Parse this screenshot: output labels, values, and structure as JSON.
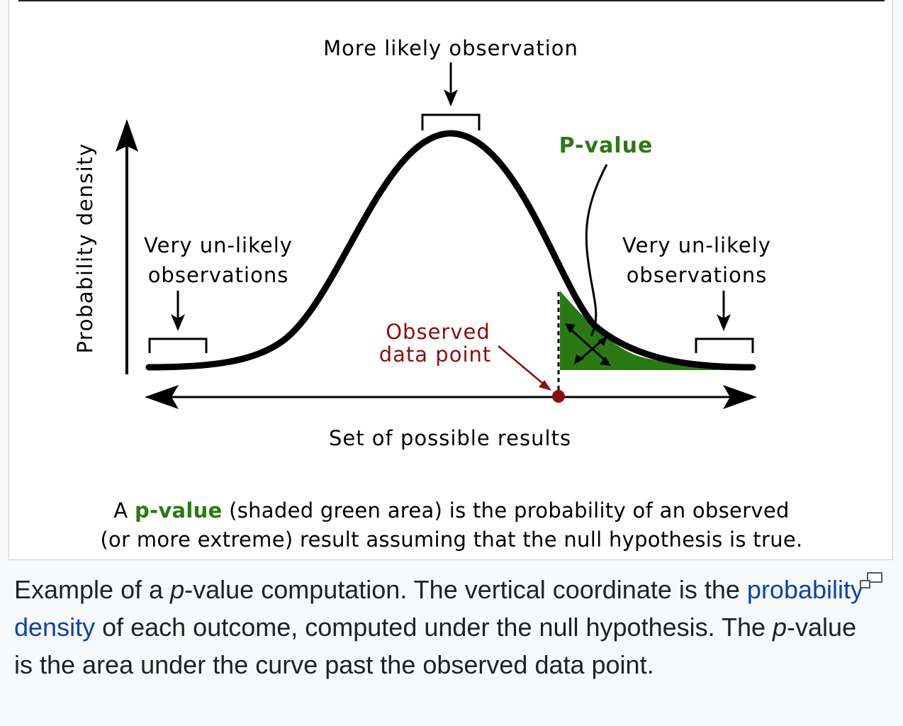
{
  "diagram": {
    "top_label": "More likely observation",
    "pvalue_label": "P-value",
    "y_axis_label": "Probability density",
    "left_tail_label": [
      "Very un-likely",
      "observations"
    ],
    "right_tail_label": [
      "Very un-likely",
      "observations"
    ],
    "observed_label": [
      "Observed",
      "data point"
    ],
    "x_axis_label": "Set of possible results",
    "colors": {
      "curve": "#000000",
      "pvalue_fill": "#2a7a13",
      "pvalue_text": "#2a7a13",
      "observed": "#8b0f0f"
    }
  },
  "figure_caption": {
    "prefix": "A ",
    "highlight": "p-value",
    "line1_rest": " (shaded green area) is the probability of an observed",
    "line2": "(or more extreme) result assuming that the null hypothesis is true."
  },
  "caption": {
    "part1": "Example of a ",
    "p1": "p",
    "part2": "-value computation. The vertical coordinate is the ",
    "link": "probability density",
    "part3": " of each outcome, computed under the null hypothesis. The ",
    "p2": "p",
    "part4": "-value is the area under the curve past the observed data point."
  },
  "icons": {
    "enlarge": "enlarge-icon"
  }
}
